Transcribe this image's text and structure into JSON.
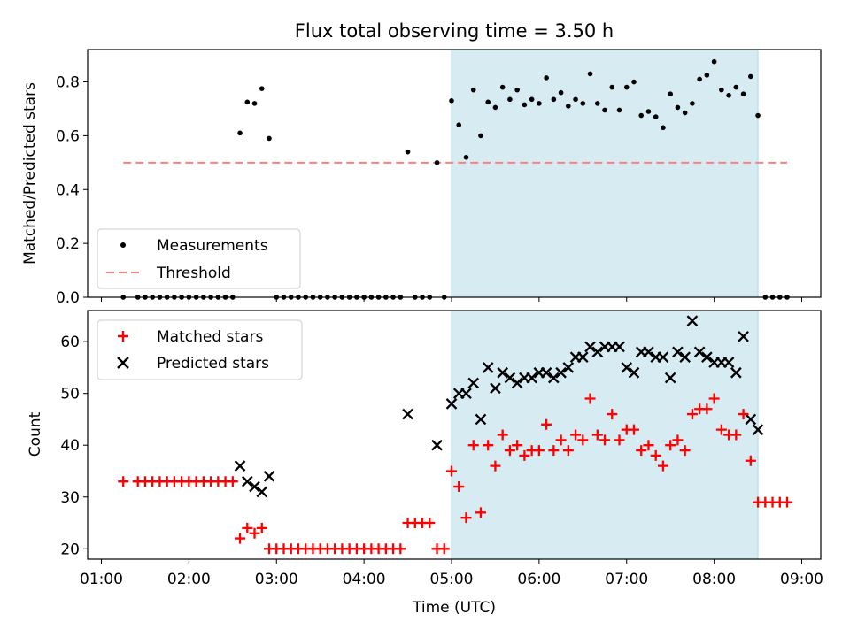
{
  "chart_data": {
    "type": "scatter",
    "title": "Flux total observing time = 3.50 h",
    "xlabel": "Time (UTC)",
    "x_ticks": [
      "01:00",
      "02:00",
      "03:00",
      "04:00",
      "05:00",
      "06:00",
      "07:00",
      "08:00",
      "09:00"
    ],
    "shaded_interval": [
      "05:00",
      "08:30"
    ],
    "colors": {
      "shade": "#add8e6",
      "measurement": "#000000",
      "threshold": "#ff7f7f",
      "matched": "#ff0000",
      "predicted": "#000000"
    },
    "top_panel": {
      "ylabel": "Matched/Predicted stars",
      "ylim": [
        0,
        0.92
      ],
      "y_ticks": [
        "0.0",
        "0.2",
        "0.4",
        "0.6",
        "0.8"
      ],
      "legend_position": "lower-left",
      "legend": {
        "measurements": "Measurements",
        "threshold": "Threshold"
      },
      "threshold": {
        "value": 0.5,
        "x_range": [
          "01:15",
          "08:50"
        ]
      }
    },
    "bottom_panel": {
      "ylabel": "Count",
      "ylim": [
        18,
        66
      ],
      "y_ticks": [
        "20",
        "30",
        "40",
        "50",
        "60"
      ],
      "legend_position": "upper-left",
      "legend": {
        "matched": "Matched stars",
        "predicted": "Predicted stars"
      }
    },
    "series": {
      "times": [
        "01:15",
        "01:25",
        "01:30",
        "01:35",
        "01:40",
        "01:45",
        "01:50",
        "01:55",
        "02:00",
        "02:05",
        "02:10",
        "02:15",
        "02:20",
        "02:25",
        "02:30",
        "02:35",
        "02:40",
        "02:45",
        "02:50",
        "02:55",
        "03:00",
        "03:05",
        "03:10",
        "03:15",
        "03:20",
        "03:25",
        "03:30",
        "03:35",
        "03:40",
        "03:45",
        "03:50",
        "03:55",
        "04:00",
        "04:05",
        "04:10",
        "04:15",
        "04:20",
        "04:25",
        "04:30",
        "04:35",
        "04:40",
        "04:45",
        "04:50",
        "04:55",
        "05:00",
        "05:05",
        "05:10",
        "05:15",
        "05:20",
        "05:25",
        "05:30",
        "05:35",
        "05:40",
        "05:45",
        "05:50",
        "05:55",
        "06:00",
        "06:05",
        "06:10",
        "06:15",
        "06:20",
        "06:25",
        "06:30",
        "06:35",
        "06:40",
        "06:45",
        "06:50",
        "06:55",
        "07:00",
        "07:05",
        "07:10",
        "07:15",
        "07:20",
        "07:25",
        "07:30",
        "07:35",
        "07:40",
        "07:45",
        "07:50",
        "07:55",
        "08:00",
        "08:05",
        "08:10",
        "08:15",
        "08:20",
        "08:25",
        "08:30",
        "08:35",
        "08:40",
        "08:45",
        "08:50"
      ],
      "ratio": [
        0,
        0,
        0,
        0,
        0,
        0,
        0,
        0,
        0,
        0,
        0,
        0,
        0,
        0,
        0,
        0.61,
        0.725,
        0.72,
        0.775,
        0.59,
        0,
        0,
        0,
        0,
        0,
        0,
        0,
        0,
        0,
        0,
        0,
        0,
        0,
        0,
        0,
        0,
        0,
        0,
        0.54,
        0,
        0,
        0,
        0.5,
        0,
        0.73,
        0.64,
        0.52,
        0.77,
        0.6,
        0.725,
        0.705,
        0.78,
        0.735,
        0.77,
        0.715,
        0.735,
        0.72,
        0.815,
        0.735,
        0.76,
        0.71,
        0.735,
        0.72,
        0.83,
        0.72,
        0.695,
        0.78,
        0.695,
        0.78,
        0.8,
        0.675,
        0.69,
        0.67,
        0.63,
        0.755,
        0.705,
        0.685,
        0.72,
        0.81,
        0.825,
        0.875,
        0.77,
        0.75,
        0.78,
        0.755,
        0.82,
        0.675,
        0,
        0,
        0,
        0
      ],
      "matched": [
        33,
        33,
        33,
        33,
        33,
        33,
        33,
        33,
        33,
        33,
        33,
        33,
        33,
        33,
        33,
        22,
        24,
        23,
        24,
        20,
        20,
        20,
        20,
        20,
        20,
        20,
        20,
        20,
        20,
        20,
        20,
        20,
        20,
        20,
        20,
        20,
        20,
        20,
        25,
        25,
        25,
        25,
        20,
        20,
        35,
        32,
        26,
        40,
        27,
        40,
        36,
        42,
        39,
        40,
        38,
        39,
        39,
        44,
        39,
        41,
        39,
        42,
        41,
        49,
        42,
        41,
        46,
        41,
        43,
        43,
        39,
        40,
        38,
        36,
        40,
        41,
        39,
        46,
        47,
        47,
        49,
        43,
        42,
        42,
        46,
        37,
        29,
        29,
        29,
        29,
        29
      ],
      "predicted": [
        null,
        null,
        null,
        null,
        null,
        null,
        null,
        null,
        null,
        null,
        null,
        null,
        null,
        null,
        null,
        36,
        33,
        32,
        31,
        34,
        null,
        null,
        null,
        null,
        null,
        null,
        null,
        null,
        null,
        null,
        null,
        null,
        null,
        null,
        null,
        null,
        null,
        null,
        46,
        null,
        null,
        null,
        40,
        null,
        48,
        50,
        50,
        52,
        45,
        55,
        51,
        54,
        53,
        52,
        53,
        53,
        54,
        54,
        53,
        54,
        55,
        57,
        57,
        59,
        58,
        59,
        59,
        59,
        55,
        54,
        58,
        58,
        57,
        57,
        53,
        58,
        57,
        64,
        58,
        57,
        56,
        56,
        56,
        54,
        61,
        45,
        43,
        null,
        null,
        null,
        null
      ]
    }
  }
}
